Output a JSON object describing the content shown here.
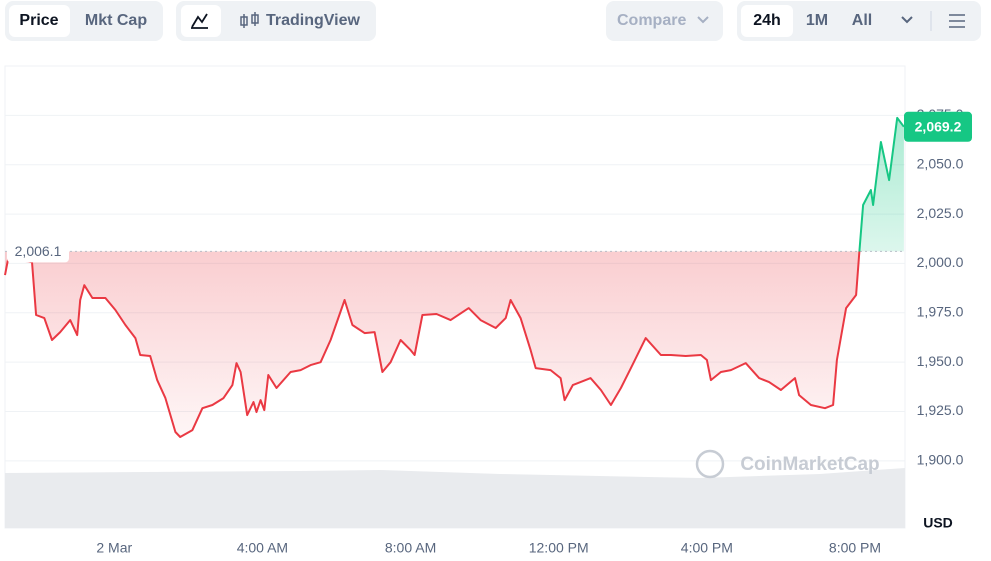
{
  "toolbar": {
    "tabs": [
      "Price",
      "Mkt Cap"
    ],
    "chart_view": "TradingView",
    "compare": "Compare",
    "ranges": [
      "24h",
      "1M",
      "All"
    ]
  },
  "chart_data": {
    "type": "line",
    "x": [
      -2.95,
      -2.86,
      -2.22,
      -2.11,
      -1.89,
      -1.68,
      -1.46,
      -1.19,
      -1.0,
      -0.92,
      -0.81,
      -0.59,
      -0.24,
      0.03,
      0.3,
      0.57,
      0.7,
      0.97,
      1.16,
      1.38,
      1.65,
      1.78,
      2.11,
      2.38,
      2.65,
      2.95,
      3.19,
      3.3,
      3.41,
      3.59,
      3.76,
      3.84,
      3.95,
      4.05,
      4.16,
      4.38,
      4.76,
      5.03,
      5.3,
      5.57,
      5.84,
      6.22,
      6.43,
      6.76,
      7.03,
      7.24,
      7.46,
      7.73,
      8.0,
      8.11,
      8.32,
      8.7,
      9.08,
      9.57,
      9.89,
      10.3,
      10.57,
      10.7,
      10.97,
      11.24,
      11.38,
      11.78,
      12.05,
      12.16,
      12.38,
      12.86,
      13.14,
      13.41,
      13.68,
      13.95,
      14.35,
      14.76,
      15.03,
      15.43,
      15.84,
      16.0,
      16.11,
      16.38,
      16.65,
      17.05,
      17.41,
      17.68,
      18.0,
      18.38,
      18.49,
      18.81,
      19.19,
      19.41,
      19.51,
      19.76,
      20.03,
      20.11,
      20.22,
      20.43,
      20.49,
      20.7,
      20.92,
      21.14,
      21.32
    ],
    "values": [
      1994.1,
      2002.7,
      2000.7,
      1973.9,
      1972.3,
      1961.2,
      1965.2,
      1971.3,
      1963.7,
      1981.5,
      1989.0,
      1982.5,
      1982.5,
      1976.4,
      1968.8,
      1962.2,
      1953.6,
      1953.1,
      1940.9,
      1931.8,
      1914.6,
      1912.1,
      1915.6,
      1926.7,
      1928.3,
      1931.8,
      1938.4,
      1949.5,
      1945.0,
      1923.2,
      1929.8,
      1924.7,
      1930.8,
      1925.7,
      1943.5,
      1936.9,
      1945.0,
      1946.0,
      1948.5,
      1950.0,
      1961.2,
      1981.5,
      1968.8,
      1964.7,
      1965.2,
      1945.0,
      1950.0,
      1961.2,
      1956.1,
      1953.6,
      1973.9,
      1974.4,
      1971.3,
      1977.4,
      1971.3,
      1967.3,
      1972.3,
      1981.5,
      1972.3,
      1956.1,
      1947.0,
      1946.0,
      1941.9,
      1930.8,
      1938.4,
      1941.9,
      1935.9,
      1928.3,
      1936.9,
      1947.0,
      1962.2,
      1953.6,
      1953.6,
      1953.1,
      1953.6,
      1951.1,
      1940.9,
      1945.0,
      1946.0,
      1949.5,
      1941.9,
      1939.9,
      1935.9,
      1941.9,
      1933.3,
      1928.3,
      1926.7,
      1928.3,
      1951.1,
      1977.4,
      1984.0,
      2004.2,
      2029.6,
      2037.2,
      2029.6,
      2061.5,
      2042.2,
      2073.7,
      2069.2
    ],
    "current_label": "2,069.2",
    "reference": {
      "value": 2006.1,
      "label": "2,006.1"
    },
    "up_color": "#16c784",
    "down_color": "#ea3943",
    "xlim": [
      -2.95,
      21.35
    ],
    "xticks": [
      {
        "value": 0,
        "label": "2 Mar"
      },
      {
        "value": 4,
        "label": "4:00 AM"
      },
      {
        "value": 8,
        "label": "8:00 AM"
      },
      {
        "value": 12,
        "label": "12:00 PM"
      },
      {
        "value": 16,
        "label": "4:00 PM"
      },
      {
        "value": 20,
        "label": "8:00 PM"
      }
    ],
    "ylim": [
      1866,
      2100
    ],
    "yticks": [
      {
        "value": 1900,
        "label": "1,900.0"
      },
      {
        "value": 1925,
        "label": "1,925.0"
      },
      {
        "value": 1950,
        "label": "1,950.0"
      },
      {
        "value": 1975,
        "label": "1,975.0"
      },
      {
        "value": 2000,
        "label": "2,000.0"
      },
      {
        "value": 2025,
        "label": "2,025.0"
      },
      {
        "value": 2050,
        "label": "2,050.0"
      },
      {
        "value": 2075,
        "label": "2,075.0"
      }
    ],
    "y_unit": "USD",
    "grid": true,
    "watermark": "CoinMarketCap"
  }
}
